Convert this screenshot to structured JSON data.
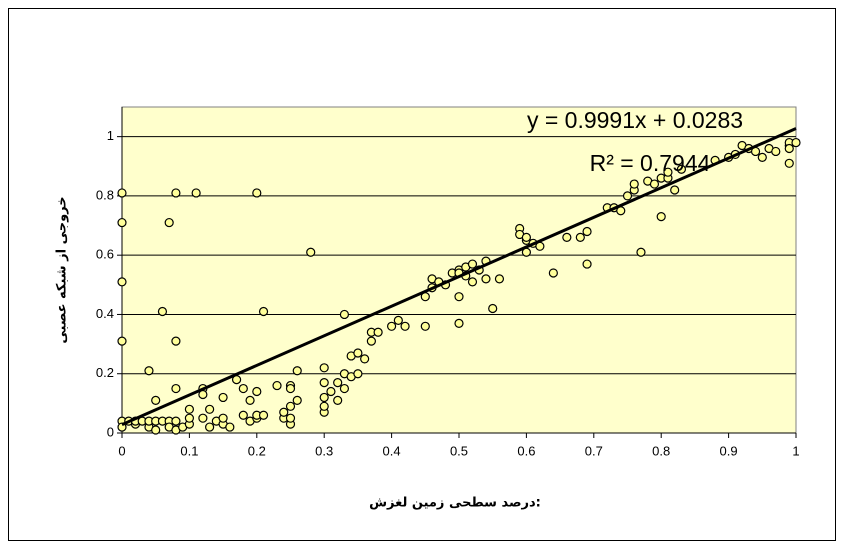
{
  "chart_data": {
    "type": "scatter",
    "x_label": ":درصد سطحی زمین لغزش",
    "y_label": "خروجی از شبکه عصبی",
    "equation": "y = 0.9991x + 0.0283",
    "r_squared_label": "R² = 0.7944",
    "trendline": {
      "slope": 0.9991,
      "intercept": 0.0283,
      "color": "#000000"
    },
    "point_color": "#ffff99",
    "background": "#ffffcc",
    "grid": true,
    "xlim": [
      0,
      1
    ],
    "xticks": [
      0,
      0.1,
      0.2,
      0.3,
      0.4,
      0.5,
      0.6,
      0.7,
      0.8,
      0.9,
      1
    ],
    "ylim": [
      0,
      1.1
    ],
    "yticks": [
      0,
      0.2,
      0.4,
      0.6,
      0.8,
      1
    ],
    "x": [
      0,
      0,
      0,
      0,
      0,
      0,
      0.01,
      0.02,
      0.02,
      0.03,
      0.04,
      0.04,
      0.05,
      0.05,
      0.06,
      0.07,
      0.07,
      0.08,
      0.08,
      0.09,
      0.1,
      0.1,
      0.1,
      0.04,
      0.05,
      0.06,
      0.07,
      0.08,
      0.08,
      0.08,
      0.11,
      0.12,
      0.12,
      0.12,
      0.13,
      0.13,
      0.14,
      0.15,
      0.15,
      0.15,
      0.16,
      0.17,
      0.18,
      0.18,
      0.19,
      0.19,
      0.2,
      0.2,
      0.2,
      0.2,
      0.21,
      0.21,
      0.23,
      0.24,
      0.24,
      0.25,
      0.25,
      0.25,
      0.25,
      0.25,
      0.26,
      0.26,
      0.28,
      0.3,
      0.3,
      0.3,
      0.3,
      0.3,
      0.31,
      0.32,
      0.32,
      0.33,
      0.33,
      0.33,
      0.34,
      0.34,
      0.35,
      0.35,
      0.36,
      0.37,
      0.37,
      0.38,
      0.4,
      0.41,
      0.42,
      0.45,
      0.45,
      0.46,
      0.46,
      0.47,
      0.48,
      0.49,
      0.5,
      0.5,
      0.51,
      0.5,
      0.5,
      0.51,
      0.52,
      0.52,
      0.53,
      0.54,
      0.54,
      0.55,
      0.56,
      0.59,
      0.59,
      0.6,
      0.6,
      0.6,
      0.61,
      0.62,
      0.64,
      0.66,
      0.68,
      0.69,
      0.69,
      0.72,
      0.73,
      0.74,
      0.75,
      0.76,
      0.76,
      0.77,
      0.78,
      0.79,
      0.8,
      0.8,
      0.81,
      0.81,
      0.82,
      0.83,
      0.88,
      0.9,
      0.91,
      0.92,
      0.93,
      0.94,
      0.95,
      0.96,
      0.97,
      0.99,
      0.99,
      0.99,
      0.99,
      1
    ],
    "values": [
      0.81,
      0.71,
      0.51,
      0.31,
      0.04,
      0.02,
      0.04,
      0.03,
      0.04,
      0.04,
      0.02,
      0.04,
      0.01,
      0.04,
      0.04,
      0.04,
      0.02,
      0.01,
      0.04,
      0.02,
      0.03,
      0.05,
      0.08,
      0.21,
      0.11,
      0.41,
      0.71,
      0.81,
      0.31,
      0.15,
      0.81,
      0.15,
      0.13,
      0.05,
      0.02,
      0.08,
      0.04,
      0.03,
      0.05,
      0.12,
      0.02,
      0.18,
      0.15,
      0.06,
      0.11,
      0.04,
      0.05,
      0.14,
      0.06,
      0.81,
      0.41,
      0.06,
      0.16,
      0.05,
      0.07,
      0.03,
      0.05,
      0.09,
      0.16,
      0.15,
      0.11,
      0.21,
      0.61,
      0.07,
      0.09,
      0.12,
      0.17,
      0.22,
      0.14,
      0.11,
      0.17,
      0.2,
      0.15,
      0.4,
      0.19,
      0.26,
      0.2,
      0.27,
      0.25,
      0.31,
      0.34,
      0.34,
      0.36,
      0.38,
      0.36,
      0.36,
      0.46,
      0.49,
      0.52,
      0.51,
      0.5,
      0.54,
      0.55,
      0.54,
      0.56,
      0.46,
      0.37,
      0.53,
      0.57,
      0.51,
      0.55,
      0.58,
      0.52,
      0.42,
      0.52,
      0.69,
      0.67,
      0.65,
      0.61,
      0.66,
      0.64,
      0.63,
      0.54,
      0.66,
      0.66,
      0.68,
      0.57,
      0.76,
      0.76,
      0.75,
      0.8,
      0.82,
      0.84,
      0.61,
      0.85,
      0.84,
      0.73,
      0.86,
      0.86,
      0.88,
      0.82,
      0.89,
      0.92,
      0.93,
      0.94,
      0.97,
      0.96,
      0.95,
      0.93,
      0.96,
      0.95,
      0.97,
      0.98,
      0.91,
      0.96,
      0.98
    ]
  }
}
